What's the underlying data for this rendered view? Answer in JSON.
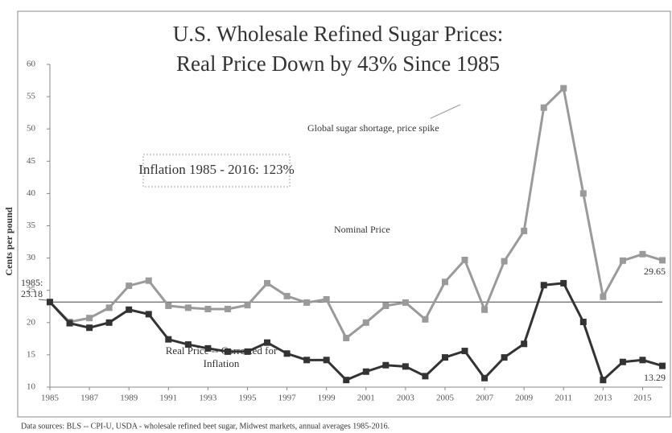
{
  "chart_data": {
    "type": "line",
    "title": [
      "U.S. Wholesale Refined Sugar Prices:",
      "Real Price Down by 43% Since 1985"
    ],
    "y_label": "Cents per pound",
    "x": [
      1985,
      1986,
      1987,
      1988,
      1989,
      1990,
      1991,
      1992,
      1993,
      1994,
      1995,
      1996,
      1997,
      1998,
      1999,
      2000,
      2001,
      2002,
      2003,
      2004,
      2005,
      2006,
      2007,
      2008,
      2009,
      2010,
      2011,
      2012,
      2013,
      2014,
      2015,
      2016
    ],
    "series": [
      {
        "name": "Nominal Price",
        "color": "#9a9a9a",
        "values": [
          23.18,
          20.1,
          20.7,
          22.3,
          25.7,
          26.5,
          22.6,
          22.3,
          22.1,
          22.1,
          22.7,
          26.1,
          24.1,
          23.1,
          23.6,
          17.6,
          20.0,
          22.6,
          23.1,
          20.5,
          26.3,
          29.7,
          22.0,
          29.5,
          34.2,
          53.3,
          56.3,
          40.0,
          24.0,
          29.6,
          30.6,
          29.65
        ]
      },
      {
        "name": "Real Price -- Corrected for Inflation",
        "color": "#333333",
        "values": [
          23.18,
          19.9,
          19.2,
          20.0,
          22.0,
          21.3,
          17.4,
          16.6,
          16.0,
          15.5,
          15.5,
          16.9,
          15.2,
          14.2,
          14.2,
          11.1,
          12.4,
          13.4,
          13.2,
          11.7,
          14.6,
          15.6,
          11.4,
          14.6,
          16.7,
          25.8,
          26.1,
          20.1,
          11.1,
          13.9,
          14.2,
          13.29
        ]
      }
    ],
    "reference_line": 23.18,
    "xlim": [
      1985,
      2016
    ],
    "xticks": [
      1985,
      1987,
      1989,
      1991,
      1993,
      1995,
      1997,
      1999,
      2001,
      2003,
      2005,
      2007,
      2009,
      2011,
      2013,
      2015
    ],
    "ylim": [
      10,
      60
    ],
    "yticks": [
      10,
      15,
      20,
      25,
      30,
      35,
      40,
      45,
      50,
      55,
      60
    ],
    "annotations": [
      "Global sugar shortage, price spike",
      "Inflation 1985 - 2016: 123%",
      "1985:",
      "23.18",
      "29.65",
      "13.29"
    ],
    "source": "Data sources: BLS -- CPI-U, USDA - wholesale refined beet sugar, Midwest markets, annual averages 1985-2016."
  }
}
